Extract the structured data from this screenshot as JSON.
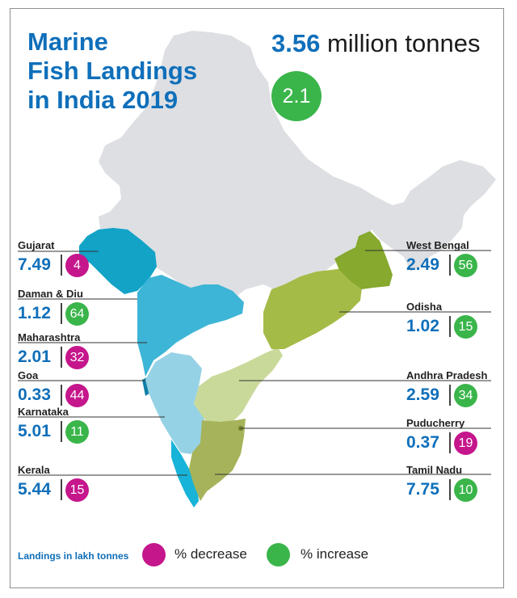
{
  "title_lines": [
    "Marine",
    "Fish Landings",
    "in India 2019"
  ],
  "total": {
    "value": "3.56",
    "unit": "million tonnes",
    "change": "2.1"
  },
  "states": [
    {
      "name": "Gujarat",
      "value": "7.49",
      "change": "4",
      "trend": "decrease"
    },
    {
      "name": "Daman & Diu",
      "value": "1.12",
      "change": "64",
      "trend": "increase"
    },
    {
      "name": "Maharashtra",
      "value": "2.01",
      "change": "32",
      "trend": "decrease"
    },
    {
      "name": "Goa",
      "value": "0.33",
      "change": "44",
      "trend": "decrease"
    },
    {
      "name": "Karnataka",
      "value": "5.01",
      "change": "11",
      "trend": "increase"
    },
    {
      "name": "Kerala",
      "value": "5.44",
      "change": "15",
      "trend": "decrease"
    },
    {
      "name": "West Bengal",
      "value": "2.49",
      "change": "56",
      "trend": "increase"
    },
    {
      "name": "Odisha",
      "value": "1.02",
      "change": "15",
      "trend": "increase"
    },
    {
      "name": "Andhra Pradesh",
      "value": "2.59",
      "change": "34",
      "trend": "increase"
    },
    {
      "name": "Puducherry",
      "value": "0.37",
      "change": "19",
      "trend": "decrease"
    },
    {
      "name": "Tamil Nadu",
      "value": "7.75",
      "change": "10",
      "trend": "increase"
    }
  ],
  "legend": {
    "units": "Landings in lakh tonnes",
    "decrease": "% decrease",
    "increase": "% increase"
  },
  "colors": {
    "title": "#0f6fba",
    "decrease": "#c5168c",
    "increase": "#3ab54a",
    "land": "#dedfe3"
  }
}
